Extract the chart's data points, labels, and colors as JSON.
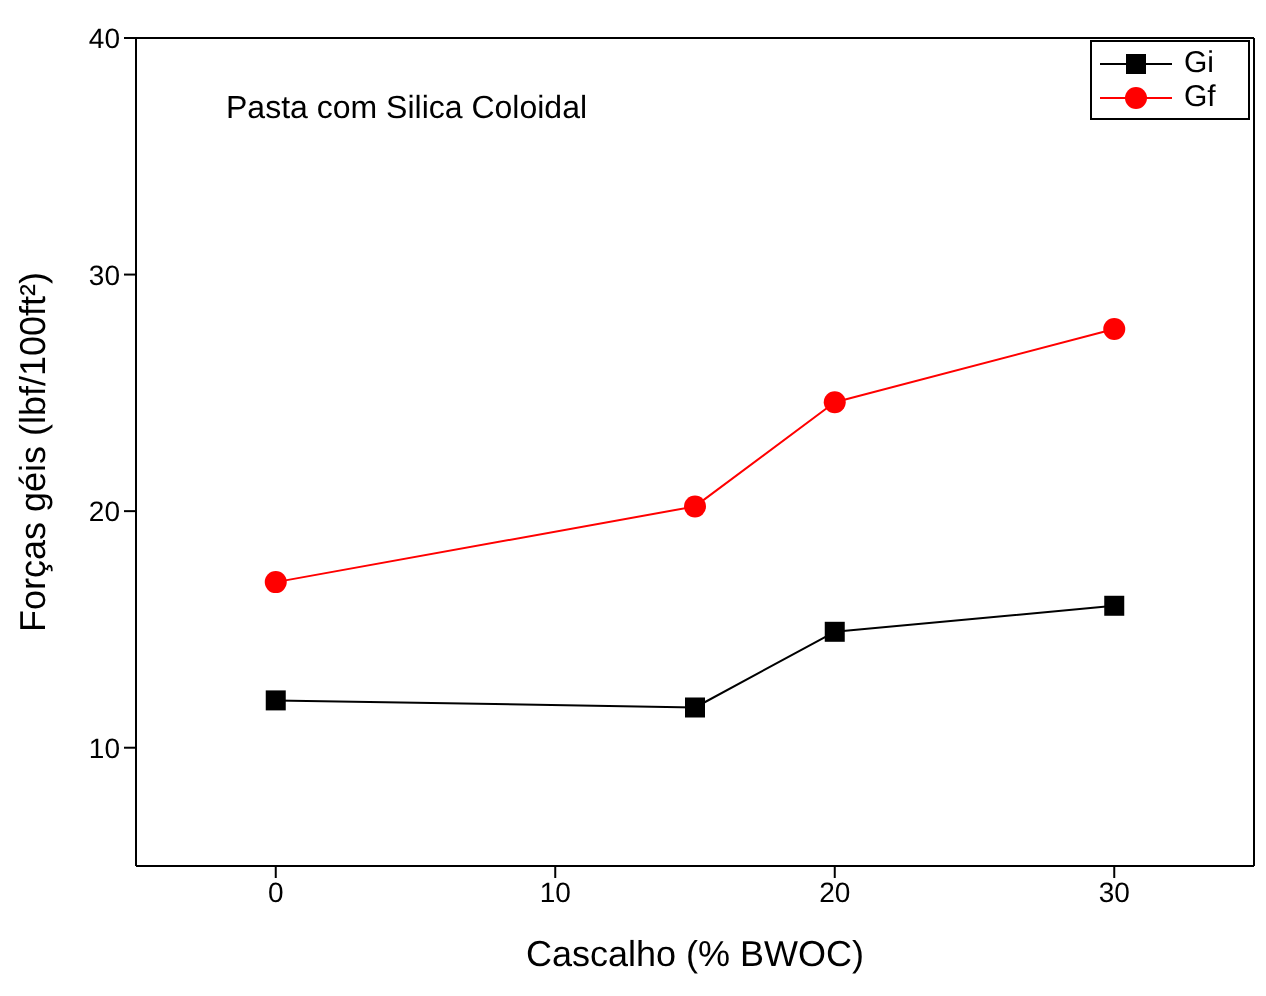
{
  "chart_data": {
    "type": "line",
    "xlabel": "Cascalho (% BWOC)",
    "ylabel": "Forças géis (lbf/100ft²)",
    "annotations": [
      "Pasta com Silica Coloidal"
    ],
    "x": [
      0,
      15,
      20,
      30
    ],
    "series": [
      {
        "name": "Gi",
        "color": "#000000",
        "marker": "square",
        "values": [
          12.0,
          11.7,
          14.9,
          16.0
        ]
      },
      {
        "name": "Gf",
        "color": "#ff0000",
        "marker": "circle",
        "values": [
          17.0,
          20.2,
          24.6,
          27.7
        ]
      }
    ],
    "xlim": [
      -5,
      35
    ],
    "xticks": [
      0,
      10,
      20,
      30
    ],
    "ylim": [
      5,
      40
    ],
    "yticks": [
      10,
      20,
      30,
      40
    ],
    "legend": "top right"
  }
}
